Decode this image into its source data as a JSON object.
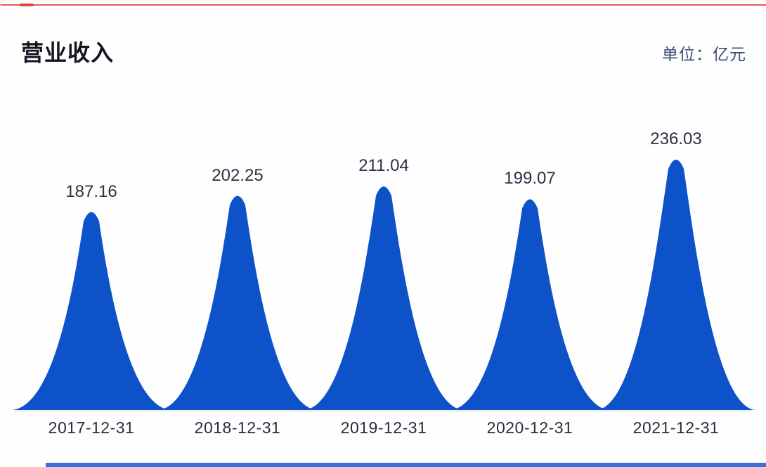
{
  "header": {
    "title": "营业收入",
    "unit_label": "单位：亿元"
  },
  "decorations": {
    "top_line_color": "#e23c3c",
    "bottom_strip_color": "#2e6bd8"
  },
  "chart_data": {
    "type": "area",
    "subtype": "pictorial-peak-spikes",
    "title": "营业收入",
    "unit": "亿元",
    "categories": [
      "2017-12-31",
      "2018-12-31",
      "2019-12-31",
      "2020-12-31",
      "2021-12-31"
    ],
    "values": [
      187.16,
      202.25,
      211.04,
      199.07,
      236.03
    ],
    "value_labels": [
      "187.16",
      "202.25",
      "211.04",
      "199.07",
      "236.03"
    ],
    "xlabel": "",
    "ylabel": "",
    "ylim": [
      0,
      236.03
    ],
    "grid": "off",
    "legend": "none",
    "peak_color": "#0d52c9",
    "baseline_color": "#e9e9ef",
    "value_label_color": "#322e44",
    "category_label_color": "#2c2a3e",
    "title_color": "#15151f",
    "unit_label_color": "#3e4c74"
  }
}
